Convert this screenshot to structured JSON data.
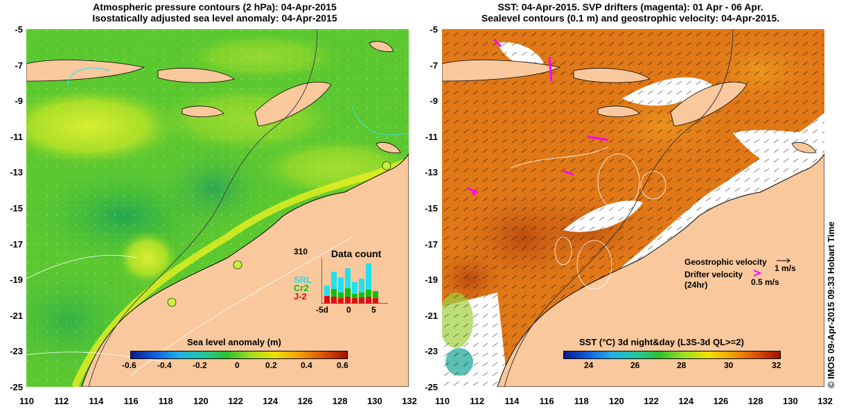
{
  "left": {
    "title_line1": "Atmospheric pressure contours (2 hPa): 04-Apr-2015",
    "title_line2": "Isostatically adjusted sea level anomaly: 04-Apr-2015",
    "colorbar_title": "Sea level anomaly (m)",
    "colorbar_ticks": [
      "-0.6",
      "-0.4",
      "-0.2",
      "0",
      "0.2",
      "0.4",
      "0.6"
    ],
    "inset": {
      "title": "Data count",
      "ymax": "310",
      "xticks": [
        "-5d",
        "0",
        "5"
      ],
      "missions": [
        {
          "name": "SRL",
          "color": "#22e0f0"
        },
        {
          "name": "Cr2",
          "color": "#10c010"
        },
        {
          "name": "J-2",
          "color": "#e01010"
        }
      ]
    }
  },
  "right": {
    "title_line1": "SST: 04-Apr-2015. SVP drifters (magenta): 01 Apr - 06 Apr.",
    "title_line2": "Sealevel contours (0.1 m) and geostrophic velocity: 04-Apr-2015.",
    "colorbar_title": "SST (°C) 3d night&day (L3S-3d QL>=2)",
    "colorbar_ticks": [
      "24",
      "26",
      "28",
      "30",
      "32"
    ],
    "legend": {
      "geostrophic": "Geostrophic velocity",
      "geostrophic_unit": "1 m/s",
      "drifter": "Drifter velocity",
      "drifter_period": "(24hr)",
      "drifter_unit": "0.5 m/s"
    },
    "credit": "© IMOS 09-Apr-2015 09:33 Hobart Time"
  },
  "axes": {
    "x_ticks": [
      "110",
      "112",
      "114",
      "116",
      "118",
      "120",
      "122",
      "124",
      "126",
      "128",
      "130",
      "132"
    ],
    "y_ticks": [
      "-5",
      "-7",
      "-9",
      "-11",
      "-13",
      "-15",
      "-17",
      "-19",
      "-21",
      "-23",
      "-25"
    ]
  },
  "colors": {
    "land": "#f9c89c",
    "sea_level_scale": [
      "#0a1a8c",
      "#1060e0",
      "#20b0e8",
      "#20c8a0",
      "#30c030",
      "#a0e020",
      "#f0e000",
      "#f0a000",
      "#e05000",
      "#a01000"
    ],
    "sst_scale": [
      "#0a1a8c",
      "#1060e0",
      "#20b0e8",
      "#20c8a0",
      "#30c030",
      "#a0e020",
      "#f0e000",
      "#f0a000",
      "#e05000",
      "#a01000"
    ],
    "drifter": "#ff00ff"
  }
}
